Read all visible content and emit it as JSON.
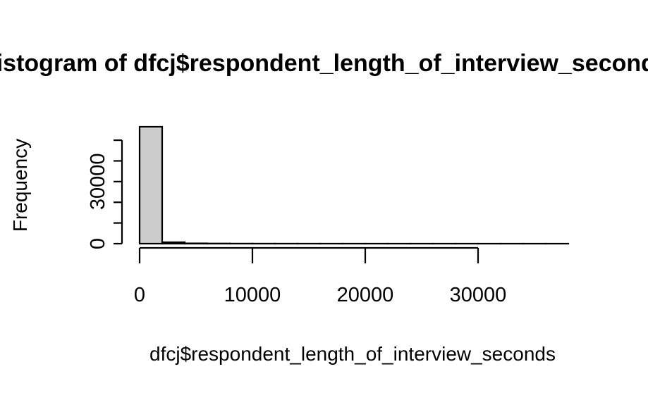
{
  "chart_data": {
    "type": "bar",
    "title": "Histogram of dfcj$respondent_length_of_interview_seconds",
    "xlabel": "dfcj$respondent_length_of_interview_seconds",
    "ylabel": "Frequency",
    "bin_width": 2000,
    "bins": [
      {
        "start": 0,
        "end": 2000,
        "count": 56500
      },
      {
        "start": 2000,
        "end": 4000,
        "count": 700
      },
      {
        "start": 4000,
        "end": 6000,
        "count": 150
      },
      {
        "start": 6000,
        "end": 8000,
        "count": 80
      },
      {
        "start": 8000,
        "end": 10000,
        "count": 40
      },
      {
        "start": 10000,
        "end": 12000,
        "count": 25
      },
      {
        "start": 12000,
        "end": 14000,
        "count": 18
      },
      {
        "start": 14000,
        "end": 16000,
        "count": 12
      },
      {
        "start": 16000,
        "end": 18000,
        "count": 10
      },
      {
        "start": 18000,
        "end": 20000,
        "count": 8
      },
      {
        "start": 20000,
        "end": 22000,
        "count": 6
      },
      {
        "start": 22000,
        "end": 24000,
        "count": 5
      },
      {
        "start": 24000,
        "end": 26000,
        "count": 4
      },
      {
        "start": 26000,
        "end": 28000,
        "count": 3
      },
      {
        "start": 28000,
        "end": 30000,
        "count": 3
      },
      {
        "start": 30000,
        "end": 32000,
        "count": 2
      },
      {
        "start": 32000,
        "end": 34000,
        "count": 2
      },
      {
        "start": 34000,
        "end": 36000,
        "count": 1
      },
      {
        "start": 36000,
        "end": 38000,
        "count": 1
      }
    ],
    "x_ticks": [
      0,
      10000,
      20000,
      30000
    ],
    "x_tick_labels": [
      "0",
      "10000",
      "20000",
      "30000"
    ],
    "y_ticks": [
      0,
      10000,
      20000,
      30000,
      40000,
      50000
    ],
    "y_tick_labels": [
      "0",
      "",
      "",
      "30000",
      "",
      ""
    ],
    "xlim": [
      0,
      38000
    ],
    "ylim": [
      0,
      56500
    ],
    "grid": false,
    "colors": {
      "bar_fill": "#cccccc",
      "bar_stroke": "#000000",
      "axis": "#000000",
      "background": "#ffffff"
    }
  }
}
